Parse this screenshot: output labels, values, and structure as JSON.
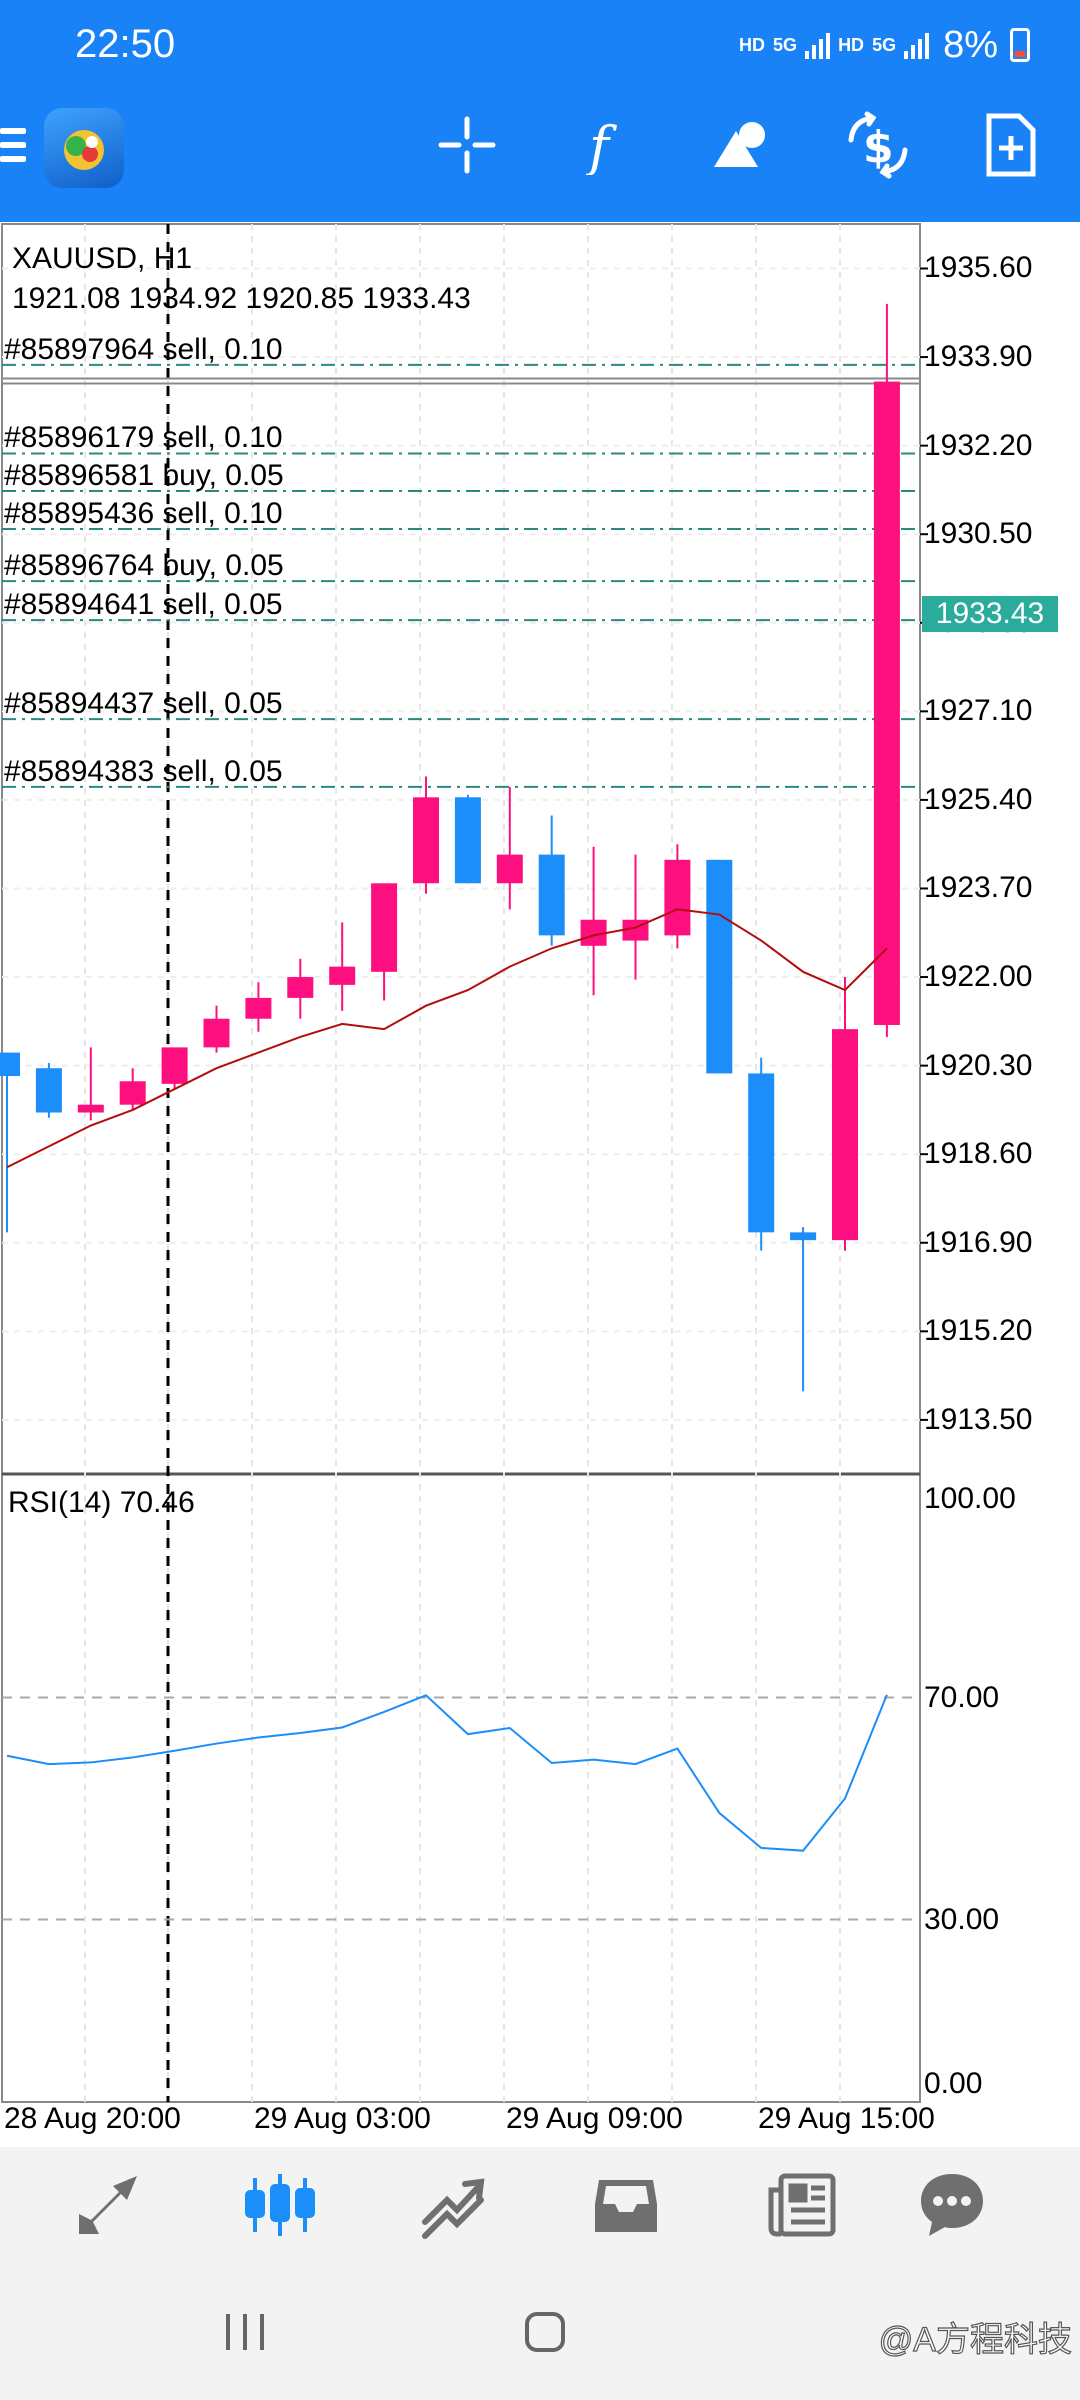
{
  "status_bar": {
    "time": "22:50",
    "network_1": "HD",
    "gen_1": "5G",
    "network_2": "HD",
    "gen_2": "5G",
    "battery": "8%"
  },
  "toolbar": {
    "icons": [
      "menu-icon",
      "app-logo",
      "crosshair-icon",
      "function-icon",
      "objects-icon",
      "trade-icon",
      "new-order-icon"
    ],
    "accent": "#1a82f7"
  },
  "chart": {
    "symbol": "XAUUSD, H1",
    "ohlc": "1921.08 1934.92 1920.85 1933.43",
    "current_price": "1933.43",
    "price_ticks": [
      "1935.60",
      "1933.90",
      "1932.20",
      "1930.50",
      "1928.80",
      "1927.10",
      "1925.40",
      "1923.70",
      "1922.00",
      "1920.30",
      "1918.60",
      "1916.90",
      "1915.20",
      "1913.50"
    ],
    "orders": [
      {
        "label": "#85897964 sell, 0.10",
        "price": 1933.75
      },
      {
        "label": "#85896179 sell, 0.10",
        "price": 1932.05
      },
      {
        "label": "#85896581 buy, 0.05",
        "price": 1931.33
      },
      {
        "label": "#85895436 sell, 0.10",
        "price": 1930.6
      },
      {
        "label": "#85896764 buy, 0.05",
        "price": 1929.6
      },
      {
        "label": "#85894641 sell, 0.05",
        "price": 1928.85
      },
      {
        "label": "#85894437 sell, 0.05",
        "price": 1926.95
      },
      {
        "label": "#85894383 sell, 0.05",
        "price": 1925.65
      }
    ],
    "rsi_label": "RSI(14) 70.46",
    "rsi_ticks": [
      "100.00",
      "70.00",
      "30.00",
      "0.00"
    ],
    "time_labels": [
      "28 Aug 20:00",
      "29 Aug 03:00",
      "29 Aug 09:00",
      "29 Aug 15:00"
    ],
    "colors": {
      "bull": "#fe0f80",
      "bear": "#1c8ef9",
      "ma": "#b30d0d",
      "rsi": "#1c8ef9",
      "order_line": "#2a8a80",
      "price_tag": "#2bab9c"
    }
  },
  "chart_data": {
    "type": "candlestick",
    "title": "XAUUSD, H1",
    "candles": [
      {
        "o": 1920.55,
        "h": 1920.55,
        "l": 1917.1,
        "c": 1920.1
      },
      {
        "o": 1920.25,
        "h": 1920.35,
        "l": 1919.3,
        "c": 1919.4
      },
      {
        "o": 1919.4,
        "h": 1920.65,
        "l": 1919.25,
        "c": 1919.55
      },
      {
        "o": 1919.55,
        "h": 1920.25,
        "l": 1919.45,
        "c": 1920.0
      },
      {
        "o": 1919.95,
        "h": 1920.6,
        "l": 1919.85,
        "c": 1920.65
      },
      {
        "o": 1920.65,
        "h": 1921.45,
        "l": 1920.55,
        "c": 1921.2
      },
      {
        "o": 1921.2,
        "h": 1921.9,
        "l": 1920.95,
        "c": 1921.6
      },
      {
        "o": 1921.6,
        "h": 1922.35,
        "l": 1921.2,
        "c": 1922.0
      },
      {
        "o": 1921.85,
        "h": 1923.05,
        "l": 1921.35,
        "c": 1922.2
      },
      {
        "o": 1922.1,
        "h": 1923.75,
        "l": 1921.55,
        "c": 1923.8
      },
      {
        "o": 1923.8,
        "h": 1925.85,
        "l": 1923.6,
        "c": 1925.45
      },
      {
        "o": 1925.45,
        "h": 1925.5,
        "l": 1923.8,
        "c": 1923.8
      },
      {
        "o": 1923.8,
        "h": 1925.65,
        "l": 1923.3,
        "c": 1924.35
      },
      {
        "o": 1924.35,
        "h": 1925.1,
        "l": 1922.6,
        "c": 1922.8
      },
      {
        "o": 1922.6,
        "h": 1924.5,
        "l": 1921.65,
        "c": 1923.1
      },
      {
        "o": 1922.7,
        "h": 1924.35,
        "l": 1921.95,
        "c": 1923.1
      },
      {
        "o": 1922.8,
        "h": 1924.55,
        "l": 1922.55,
        "c": 1924.25
      },
      {
        "o": 1924.25,
        "h": 1924.25,
        "l": 1920.15,
        "c": 1920.15
      },
      {
        "o": 1920.15,
        "h": 1920.45,
        "l": 1916.75,
        "c": 1917.1
      },
      {
        "o": 1917.1,
        "h": 1917.2,
        "l": 1914.05,
        "c": 1916.95
      },
      {
        "o": 1916.95,
        "h": 1922.0,
        "l": 1916.75,
        "c": 1921.0
      },
      {
        "o": 1921.08,
        "h": 1934.92,
        "l": 1920.85,
        "c": 1933.43
      }
    ],
    "ma": [
      1918.35,
      1918.75,
      1919.15,
      1919.45,
      1919.85,
      1920.25,
      1920.55,
      1920.85,
      1921.1,
      1921.0,
      1921.45,
      1921.75,
      1922.2,
      1922.55,
      1922.8,
      1922.95,
      1923.3,
      1923.2,
      1922.7,
      1922.1,
      1921.75,
      1922.55
    ],
    "rsi": [
      59.5,
      58.0,
      58.3,
      59.2,
      60.4,
      61.7,
      62.8,
      63.6,
      64.6,
      67.4,
      70.4,
      63.4,
      64.5,
      58.2,
      58.8,
      58.0,
      60.8,
      49.2,
      42.9,
      42.4,
      51.8,
      70.5
    ],
    "ylim": [
      1912.5,
      1936.3
    ],
    "rsi_ylim": [
      0,
      100
    ]
  },
  "bottom_nav": {
    "items": [
      "quotes-icon",
      "chart-icon",
      "trade-icon",
      "history-icon",
      "news-icon",
      "chat-icon"
    ]
  },
  "system_nav": {
    "items": [
      "recents-button",
      "home-button"
    ],
    "watermark": "@A方程科技"
  }
}
